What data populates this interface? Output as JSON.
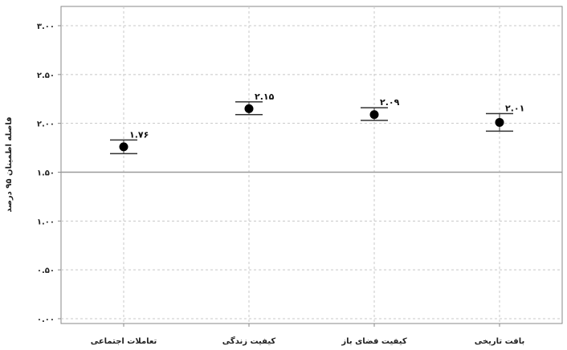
{
  "chart_data": {
    "type": "scatter",
    "ylabel": "فاصله اطمینان ۹۵ درصد",
    "ylim": [
      0,
      3
    ],
    "yticks": [
      0,
      0.5,
      1,
      1.5,
      2,
      2.5,
      3
    ],
    "ytick_labels": [
      "۰.۰۰",
      "۰.۵۰",
      "۱.۰۰",
      "۱.۵۰",
      "۲.۰۰",
      "۲.۵۰",
      "۳.۰۰"
    ],
    "reference_line": 1.5,
    "grid": true,
    "categories": [
      "تعاملات اجتماعی",
      "کیفیت زندگی",
      "کیفیت فضای باز",
      "بافت تاریخی"
    ],
    "series": [
      {
        "values": [
          1.76,
          2.15,
          2.09,
          2.01
        ],
        "ci_low": [
          1.69,
          2.09,
          2.03,
          1.92
        ],
        "ci_high": [
          1.83,
          2.22,
          2.16,
          2.1
        ],
        "value_labels": [
          "۱.۷۶",
          "۲.۱۵",
          "۲.۰۹",
          "۲.۰۱"
        ]
      }
    ]
  },
  "colors": {
    "marker": "#000000",
    "errorbar": "#333333",
    "grid": "#c8c8c8",
    "reference": "#9a9a9a",
    "frame": "#8a8a8a"
  }
}
